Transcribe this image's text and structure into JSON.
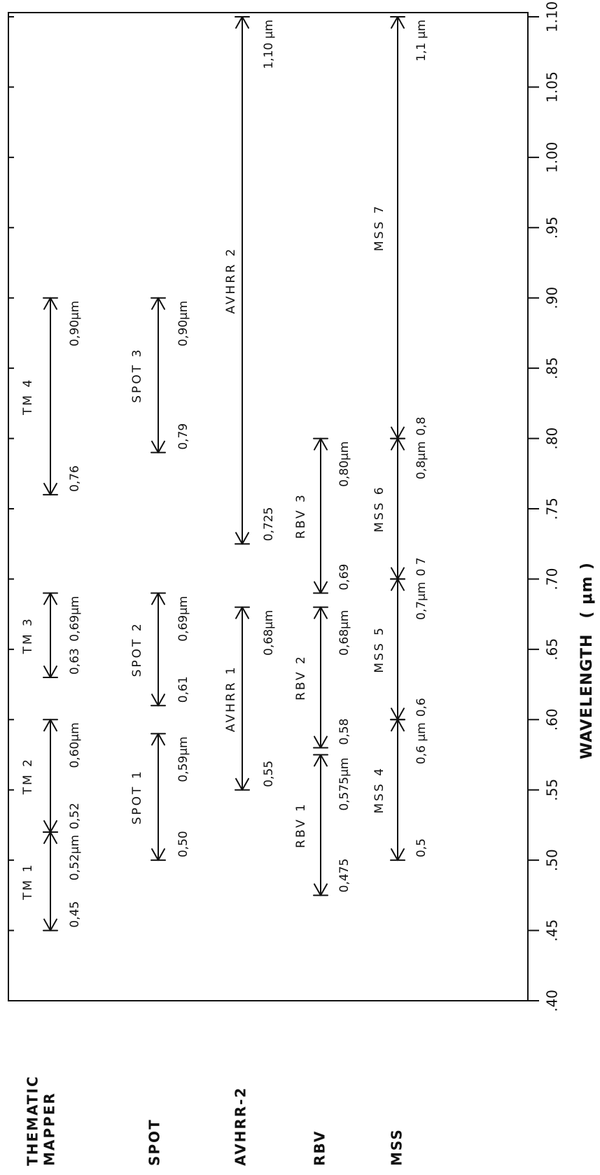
{
  "chart_data": {
    "type": "range",
    "x_axis": {
      "label": "WAVELENGTH",
      "unit": "( μm )",
      "ticks": [
        ".40",
        ".45",
        ".50",
        ".55",
        ".60",
        ".65",
        ".70",
        ".75",
        ".80",
        ".85",
        ".90",
        ".95",
        "1.00",
        "1.05",
        "1.10"
      ],
      "range": [
        0.4,
        1.1
      ]
    },
    "sensors": [
      {
        "name_lines": [
          "THEMATIC",
          "MAPPER"
        ],
        "row": 0
      },
      {
        "name_lines": [
          "SPOT"
        ],
        "row": 1
      },
      {
        "name_lines": [
          "AVHRR-2"
        ],
        "row": 2
      },
      {
        "name_lines": [
          "RBV"
        ],
        "row": 3
      },
      {
        "name_lines": [
          "MSS"
        ],
        "row": 4
      }
    ],
    "bands": [
      {
        "name": "TM 1",
        "row": 0,
        "start": 0.45,
        "end": 0.52,
        "start_label": "0,45",
        "end_label": "0,52μm"
      },
      {
        "name": "TM 2",
        "row": 0,
        "start": 0.52,
        "end": 0.6,
        "start_label": "0,52",
        "end_label": "0,60μm"
      },
      {
        "name": "TM 3",
        "row": 0,
        "start": 0.63,
        "end": 0.69,
        "start_label": "0,63",
        "end_label": "0,69μm"
      },
      {
        "name": "TM 4",
        "row": 0,
        "start": 0.76,
        "end": 0.9,
        "start_label": "0,76",
        "end_label": "0,90μm"
      },
      {
        "name": "SPOT 1",
        "row": 1,
        "start": 0.5,
        "end": 0.59,
        "start_label": "0,50",
        "end_label": "0,59μm"
      },
      {
        "name": "SPOT 2",
        "row": 1,
        "start": 0.61,
        "end": 0.69,
        "start_label": "0,61",
        "end_label": "0,69μm"
      },
      {
        "name": "SPOT 3",
        "row": 1,
        "start": 0.79,
        "end": 0.9,
        "start_label": "0,79",
        "end_label": "0,90μm"
      },
      {
        "name": "AVHRR 1",
        "row": 2,
        "start": 0.55,
        "end": 0.68,
        "start_label": "0,55",
        "end_label": "0,68μm"
      },
      {
        "name": "AVHRR 2",
        "row": 2,
        "start": 0.725,
        "end": 1.1,
        "start_label": "0,725",
        "end_label": "1,10 μm"
      },
      {
        "name": "RBV 1",
        "row": 3,
        "start": 0.475,
        "end": 0.575,
        "start_label": "0,475",
        "end_label": "0,575μm"
      },
      {
        "name": "RBV 2",
        "row": 3,
        "start": 0.58,
        "end": 0.68,
        "start_label": "0,58",
        "end_label": "0,68μm"
      },
      {
        "name": "RBV 3",
        "row": 3,
        "start": 0.69,
        "end": 0.8,
        "start_label": "0,69",
        "end_label": "0,80μm"
      },
      {
        "name": "MSS 4",
        "row": 4,
        "start": 0.5,
        "end": 0.6,
        "start_label": "0,5",
        "end_label": "0,6 μm"
      },
      {
        "name": "MSS 5",
        "row": 4,
        "start": 0.6,
        "end": 0.7,
        "start_label": "0,6",
        "end_label": "0,7μm"
      },
      {
        "name": "MSS 6",
        "row": 4,
        "start": 0.7,
        "end": 0.8,
        "start_label": "0 7",
        "end_label": "0,8μm"
      },
      {
        "name": "MSS 7",
        "row": 4,
        "start": 0.8,
        "end": 1.1,
        "start_label": "0,8",
        "end_label": "1,1 μm"
      }
    ],
    "grid": false,
    "orientation": "rotated-90-ccw"
  }
}
